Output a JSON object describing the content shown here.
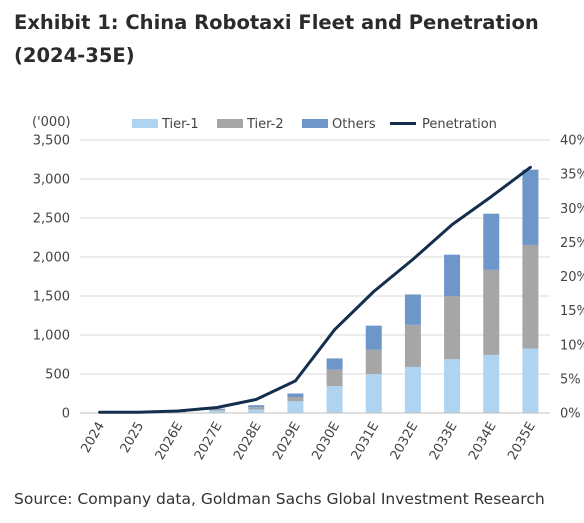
{
  "title_line1": "Exhibit 1: China Robotaxi Fleet and Penetration",
  "title_line2": "(2024-35E)",
  "source": "Source: Company data, Goldman Sachs Global Investment Research",
  "chart_data": {
    "type": "bar",
    "stacked": true,
    "unit_label": "('000)",
    "categories": [
      "2024",
      "2025",
      "2026E",
      "2027E",
      "2028E",
      "2029E",
      "2030E",
      "2031E",
      "2032E",
      "2033E",
      "2034E",
      "2035E"
    ],
    "series": [
      {
        "name": "Tier-1",
        "color": "#aed4f2",
        "values": [
          4,
          6,
          12,
          30,
          45,
          150,
          345,
          500,
          590,
          690,
          745,
          825
        ]
      },
      {
        "name": "Tier-2",
        "color": "#a6a6a6",
        "values": [
          1,
          2,
          5,
          15,
          30,
          55,
          210,
          310,
          540,
          810,
          1090,
          1330
        ]
      },
      {
        "name": "Others",
        "color": "#6f96c9",
        "values": [
          1,
          2,
          3,
          10,
          25,
          45,
          145,
          310,
          390,
          530,
          720,
          965
        ]
      }
    ],
    "line_series": {
      "name": "Penetration",
      "color": "#142f4d",
      "axis": "right",
      "values": [
        0.1,
        0.1,
        0.3,
        0.8,
        2.0,
        4.7,
        12.2,
        17.8,
        22.5,
        27.6,
        31.7,
        36.0
      ]
    },
    "y_left": {
      "min": 0,
      "max": 3500,
      "ticks": [
        0,
        500,
        1000,
        1500,
        2000,
        2500,
        3000,
        3500
      ],
      "tick_labels": [
        "0",
        "500",
        "1,000",
        "1,500",
        "2,000",
        "2,500",
        "3,000",
        "3,500"
      ]
    },
    "y_right": {
      "min": 0,
      "max": 40,
      "ticks": [
        0,
        5,
        10,
        15,
        20,
        25,
        30,
        35,
        40
      ],
      "tick_labels": [
        "0%",
        "5%",
        "10%",
        "15%",
        "20%",
        "25%",
        "30%",
        "35%",
        "40%"
      ]
    },
    "grid": true,
    "legend": {
      "position": "top",
      "entries": [
        "Tier-1",
        "Tier-2",
        "Others",
        "Penetration"
      ]
    }
  }
}
